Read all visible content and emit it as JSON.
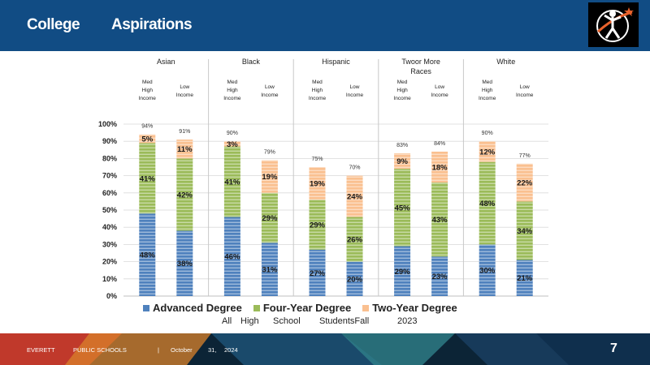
{
  "header": {
    "title_word1": "College",
    "title_word2": "Aspirations"
  },
  "logo": {
    "icon": "graduate-figure-logo"
  },
  "colors": {
    "header_bg": "#114c84",
    "advanced": "#4f81bd",
    "four_year": "#9bbb59",
    "two_year": "#fac090"
  },
  "chart_data": {
    "type": "bar",
    "stacked": true,
    "groups": [
      {
        "name": "Asian",
        "name_lines": [
          "Asian"
        ]
      },
      {
        "name": "Black",
        "name_lines": [
          "Black"
        ]
      },
      {
        "name": "Hispanic",
        "name_lines": [
          "Hispanic"
        ]
      },
      {
        "name": "Twoor More Races",
        "name_lines": [
          "Twoor More",
          "Races"
        ]
      },
      {
        "name": "White",
        "name_lines": [
          "White"
        ]
      }
    ],
    "income_labels": {
      "med_high": [
        "Med",
        "High",
        "Income"
      ],
      "low": [
        "Low",
        "Income"
      ]
    },
    "bars": [
      {
        "group": "Asian",
        "income": "Med High Income",
        "total": "94%",
        "values": [
          48,
          41,
          5
        ]
      },
      {
        "group": "Asian",
        "income": "Low Income",
        "total": "91%",
        "values": [
          38,
          42,
          11
        ]
      },
      {
        "group": "Black",
        "income": "Med High Income",
        "total": "90%",
        "values": [
          46,
          41,
          3
        ]
      },
      {
        "group": "Black",
        "income": "Low Income",
        "total": "79%",
        "values": [
          31,
          29,
          19
        ]
      },
      {
        "group": "Hispanic",
        "income": "Med High Income",
        "total": "75%",
        "values": [
          27,
          29,
          19
        ]
      },
      {
        "group": "Hispanic",
        "income": "Low Income",
        "total": "70%",
        "values": [
          20,
          26,
          24
        ]
      },
      {
        "group": "Twoor More Races",
        "income": "Med High Income",
        "total": "83%",
        "values": [
          29,
          45,
          9
        ]
      },
      {
        "group": "Twoor More Races",
        "income": "Low Income",
        "total": "84%",
        "values": [
          23,
          43,
          18
        ]
      },
      {
        "group": "White",
        "income": "Med High Income",
        "total": "90%",
        "values": [
          30,
          48,
          12
        ]
      },
      {
        "group": "White",
        "income": "Low Income",
        "total": "77%",
        "values": [
          21,
          34,
          22
        ]
      }
    ],
    "series": [
      {
        "name": "Advanced Degree",
        "color": "#4f81bd"
      },
      {
        "name": "Four-Year Degree",
        "color": "#9bbb59"
      },
      {
        "name": "Two-Year Degree",
        "color": "#fac090"
      }
    ],
    "y_ticks": [
      "0%",
      "10%",
      "20%",
      "30%",
      "40%",
      "50%",
      "60%",
      "70%",
      "80%",
      "90%",
      "100%"
    ],
    "ylim": [
      0,
      100
    ],
    "grid": true,
    "legend_position": "bottom"
  },
  "subtitle": {
    "w1": "All",
    "w2": "High",
    "w3": "School",
    "w4": "StudentsFall",
    "w5": "2023"
  },
  "footer": {
    "org1": "EVERETT",
    "org2": "PUBLIC SCHOOLS",
    "sep": "|",
    "month": "October",
    "day": "31,",
    "year": "2024",
    "page": "7"
  }
}
